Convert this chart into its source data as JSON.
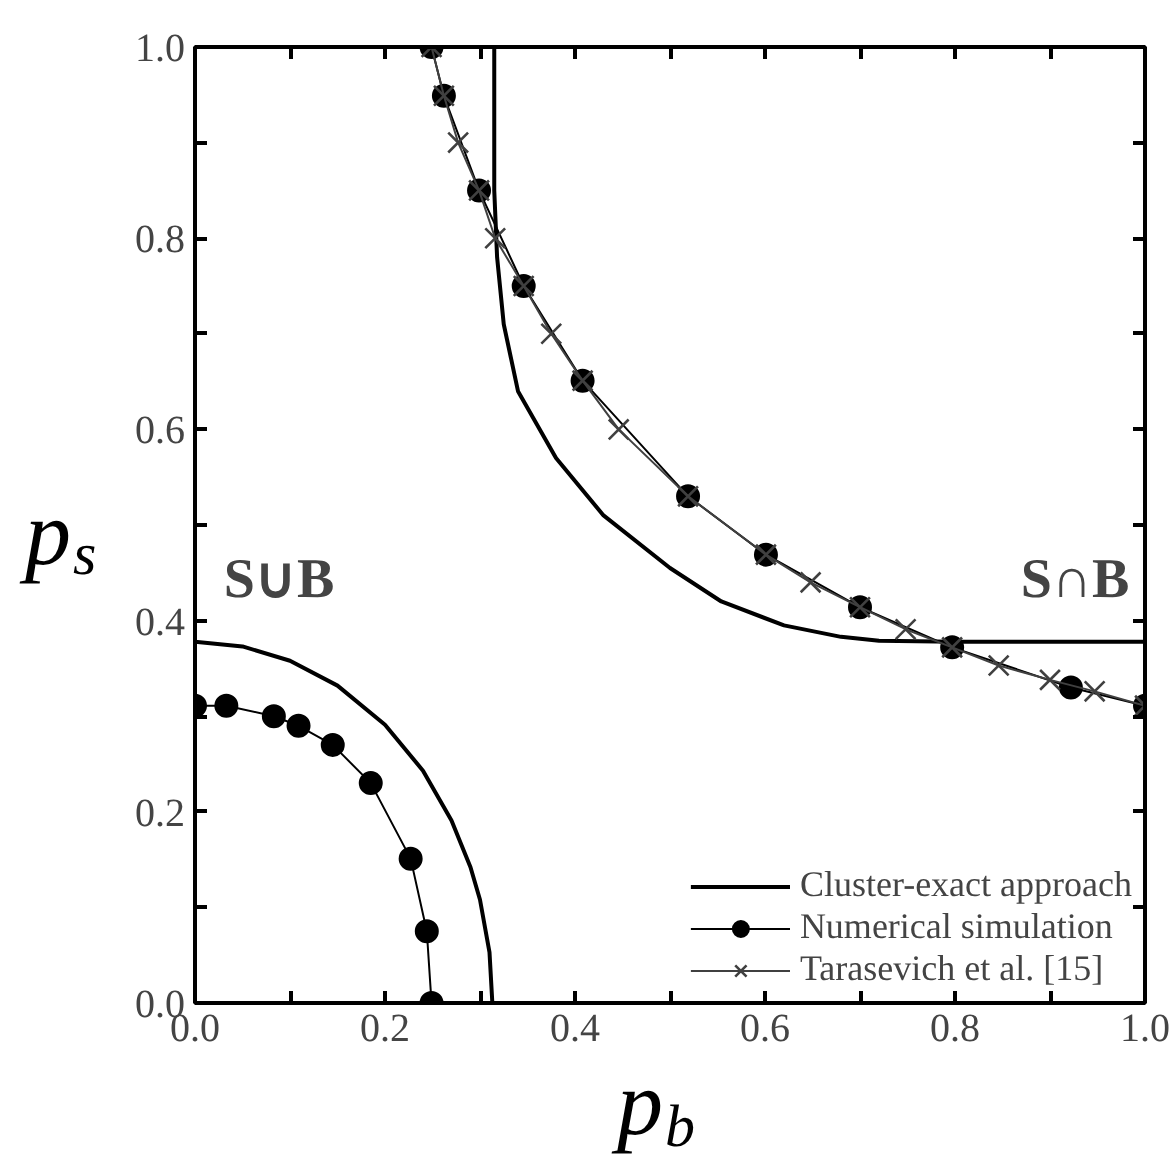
{
  "chart_data": {
    "type": "line",
    "xlabel": "p$_{b}$",
    "ylabel": "p$_{s}$",
    "xlim": [
      0,
      1
    ],
    "ylim": [
      0,
      1
    ],
    "xticks": [
      {
        "value": 0,
        "label": "0.0"
      },
      {
        "value": 0.1,
        "label": null
      },
      0.2,
      {
        "value": 0.3,
        "label": null
      },
      0.4,
      {
        "value": 0.5,
        "label": null
      },
      0.6,
      {
        "value": 0.7,
        "label": null
      },
      0.8,
      {
        "value": 0.9,
        "label": null
      },
      {
        "value": 1,
        "label": "1.0"
      }
    ],
    "yticks": [
      {
        "value": 0,
        "label": "0.0"
      },
      {
        "value": 0.1,
        "label": null
      },
      0.2,
      {
        "value": 0.3,
        "label": null
      },
      0.4,
      {
        "value": 0.5,
        "label": null
      },
      0.6,
      {
        "value": 0.7,
        "label": null
      },
      0.8,
      {
        "value": 0.9,
        "label": null
      },
      {
        "value": 1,
        "label": "1.0"
      }
    ],
    "grid": false,
    "legend": "bottom right",
    "series": [
      {
        "name": "Cluster-exact approach",
        "color": "#000000",
        "marker": "none",
        "x": [
          0,
          0.05,
          0.1,
          0.15,
          0.2,
          0.24,
          0.27,
          0.29,
          0.3,
          0.31,
          0.313,
          null,
          0.315,
          0.315,
          0.318,
          0.325,
          0.34,
          0.38,
          0.43,
          0.5,
          0.554,
          0.62,
          0.68,
          0.72,
          0.8,
          1.0
        ],
        "values": [
          0.378,
          0.373,
          0.358,
          0.332,
          0.291,
          0.243,
          0.191,
          0.142,
          0.108,
          0.053,
          0,
          null,
          1.0,
          0.85,
          0.78,
          0.71,
          0.64,
          0.57,
          0.51,
          0.455,
          0.42,
          0.395,
          0.383,
          0.379,
          0.378,
          0.378
        ]
      },
      {
        "name": "Numerical simulation",
        "color": "#000000",
        "marker": "circle",
        "x": [
          0,
          0.033,
          0.083,
          0.109,
          0.145,
          0.185,
          0.227,
          0.244,
          0.249,
          null,
          0.249,
          0.262,
          0.299,
          0.346,
          0.408,
          0.519,
          0.601,
          0.7,
          0.797,
          0.922,
          1.0
        ],
        "values": [
          0.311,
          0.311,
          0.3,
          0.29,
          0.27,
          0.23,
          0.151,
          0.075,
          0,
          null,
          1.0,
          0.949,
          0.85,
          0.75,
          0.651,
          0.53,
          0.469,
          0.414,
          0.372,
          0.33,
          0.311
        ]
      },
      {
        "name": "Tarasevich et al. [15]",
        "color": "#404040",
        "marker": "cross",
        "x": [
          0.249,
          0.262,
          0.277,
          0.299,
          0.316,
          0.346,
          0.375,
          0.408,
          0.446,
          0.519,
          0.601,
          0.648,
          0.7,
          0.748,
          0.797,
          0.846,
          0.9,
          0.947,
          1.0
        ],
        "values": [
          1.0,
          0.949,
          0.9,
          0.85,
          0.8,
          0.75,
          0.7,
          0.651,
          0.6,
          0.53,
          0.469,
          0.44,
          0.414,
          0.391,
          0.372,
          0.353,
          0.338,
          0.326,
          0.311
        ]
      }
    ],
    "annotations": [
      "S∪B",
      "S∩B"
    ]
  }
}
